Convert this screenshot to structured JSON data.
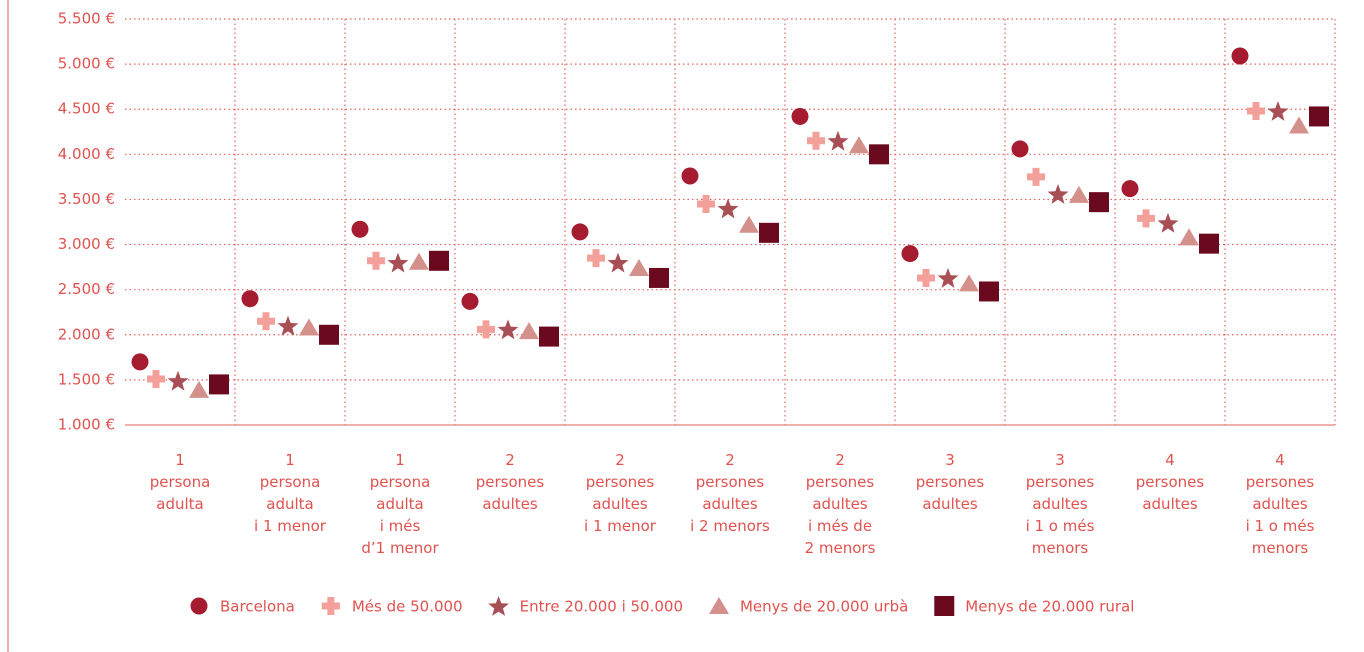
{
  "chart_data": {
    "type": "dot",
    "categories": [
      "1\npersona\nadulta",
      "1\npersona\nadulta\ni 1 menor",
      "1\npersona\nadulta\ni més\nd’1 menor",
      "2\npersones\nadultes",
      "2\npersones\nadultes\ni 1 menor",
      "2\npersones\nadultes\ni 2 menors",
      "2\npersones\nadultes\ni més de\n2 menors",
      "3\npersones\nadultes",
      "3\npersones\nadultes\ni 1 o més\nmenors",
      "4\npersones\nadultes",
      "4\npersones\nadultes\ni 1 o més\nmenors"
    ],
    "series": [
      {
        "name": "Barcelona",
        "color": "#a51c30",
        "marker": "circle",
        "values": [
          1700,
          2400,
          3170,
          2370,
          3140,
          3760,
          4420,
          2900,
          4060,
          3620,
          5090
        ]
      },
      {
        "name": "Més de 50.000",
        "color": "#f4a09a",
        "marker": "plus",
        "values": [
          1510,
          2150,
          2820,
          2060,
          2850,
          3450,
          4150,
          2630,
          3750,
          3290,
          4480
        ]
      },
      {
        "name": "Entre 20.000 i 50.000",
        "color": "#a84e55",
        "marker": "star",
        "values": [
          1490,
          2100,
          2800,
          2060,
          2800,
          3400,
          4150,
          2630,
          3560,
          3240,
          4480
        ]
      },
      {
        "name": "Menys de 20.000 urbà",
        "color": "#d4918c",
        "marker": "triangle",
        "values": [
          1390,
          2080,
          2810,
          2040,
          2740,
          3220,
          4100,
          2570,
          3550,
          3080,
          4320
        ]
      },
      {
        "name": "Menys de 20.000 rural",
        "color": "#6b0a1e",
        "marker": "square",
        "values": [
          1450,
          2000,
          2820,
          1980,
          2630,
          3130,
          4000,
          2480,
          3470,
          3010,
          4420
        ]
      }
    ],
    "ylim": [
      1000,
      5500
    ],
    "yticks": [
      {
        "value": 1000,
        "label": "1.000 €"
      },
      {
        "value": 1500,
        "label": "1.500 €"
      },
      {
        "value": 2000,
        "label": "2.000 €"
      },
      {
        "value": 2500,
        "label": "2.500 €"
      },
      {
        "value": 3000,
        "label": "3.000 €"
      },
      {
        "value": 3500,
        "label": "3.500 €"
      },
      {
        "value": 4000,
        "label": "4.000 €"
      },
      {
        "value": 4500,
        "label": "4.500 €"
      },
      {
        "value": 5000,
        "label": "5.000 €"
      },
      {
        "value": 5500,
        "label": "5.500 €"
      }
    ],
    "grid": true,
    "legend": "bottom"
  }
}
